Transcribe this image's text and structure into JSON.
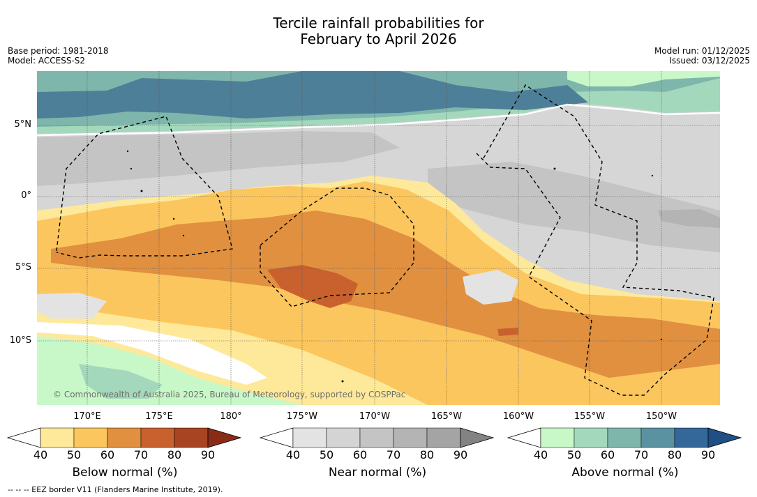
{
  "title_line1": "Tercile rainfall probabilities for",
  "title_line2": "February to April 2026",
  "base_period": "Base period: 1981-2018",
  "model": "Model: ACCESS-S2",
  "model_run": "Model run: 01/12/2025",
  "issued": "Issued: 03/12/2025",
  "lat_labels": [
    "5°N",
    "0°",
    "5°S",
    "10°S"
  ],
  "lon_labels": [
    "170°E",
    "175°E",
    "180°",
    "175°W",
    "170°W",
    "165°W",
    "160°W",
    "155°W",
    "150°W"
  ],
  "copyright": "© Commonwealth of Australia 2025, Bureau of Meteorology, supported by COSPPac",
  "colorbars": [
    {
      "label": "Below normal (%)",
      "ticks": [
        "40",
        "50",
        "60",
        "70",
        "80",
        "90"
      ],
      "colors": [
        "#ffffff",
        "#fee99a",
        "#fcc65f",
        "#e0903f",
        "#c8612e",
        "#a84421",
        "#8a2b16"
      ]
    },
    {
      "label": "Near normal (%)",
      "ticks": [
        "40",
        "50",
        "60",
        "70",
        "80",
        "90"
      ],
      "colors": [
        "#ffffff",
        "#e3e3e3",
        "#d4d4d4",
        "#c4c4c4",
        "#b4b4b4",
        "#a4a4a4",
        "#838383"
      ]
    },
    {
      "label": "Above normal (%)",
      "ticks": [
        "40",
        "50",
        "60",
        "70",
        "80",
        "90"
      ],
      "colors": [
        "#ffffff",
        "#c8f8c8",
        "#a4d8bc",
        "#7fb6ac",
        "#5b92a2",
        "#35689a",
        "#1f4f85"
      ]
    }
  ],
  "footnote": "--  --  -- EEZ border V11 (Flanders Marine Institute, 2019)."
}
